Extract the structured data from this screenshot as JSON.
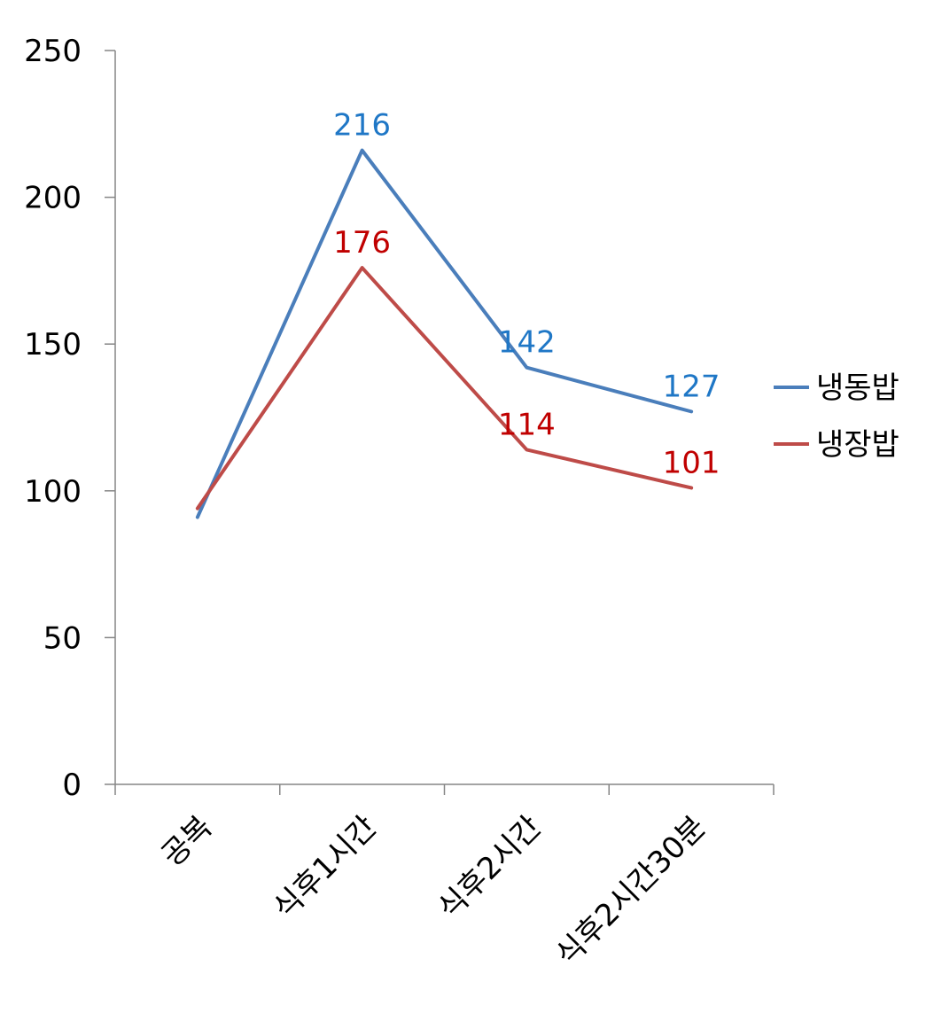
{
  "chart_data": {
    "type": "line",
    "title": "",
    "xlabel": "",
    "ylabel": "",
    "categories": [
      "공복",
      "식후1시간",
      "식후2시간",
      "식후2시간30분"
    ],
    "ylim": [
      0,
      250
    ],
    "yticks": [
      0,
      50,
      100,
      150,
      200,
      250
    ],
    "grid": false,
    "legend": "right",
    "series": [
      {
        "name": "냉동밥",
        "color": "#4A7EBB",
        "label_color": "#1F77C6",
        "values": [
          91,
          216,
          142,
          127
        ],
        "data_labels": [
          null,
          "216",
          "142",
          "127"
        ]
      },
      {
        "name": "냉장밥",
        "color": "#BE4B48",
        "label_color": "#C00000",
        "values": [
          94,
          176,
          114,
          101
        ],
        "data_labels": [
          null,
          "176",
          "114",
          "101"
        ]
      }
    ]
  }
}
